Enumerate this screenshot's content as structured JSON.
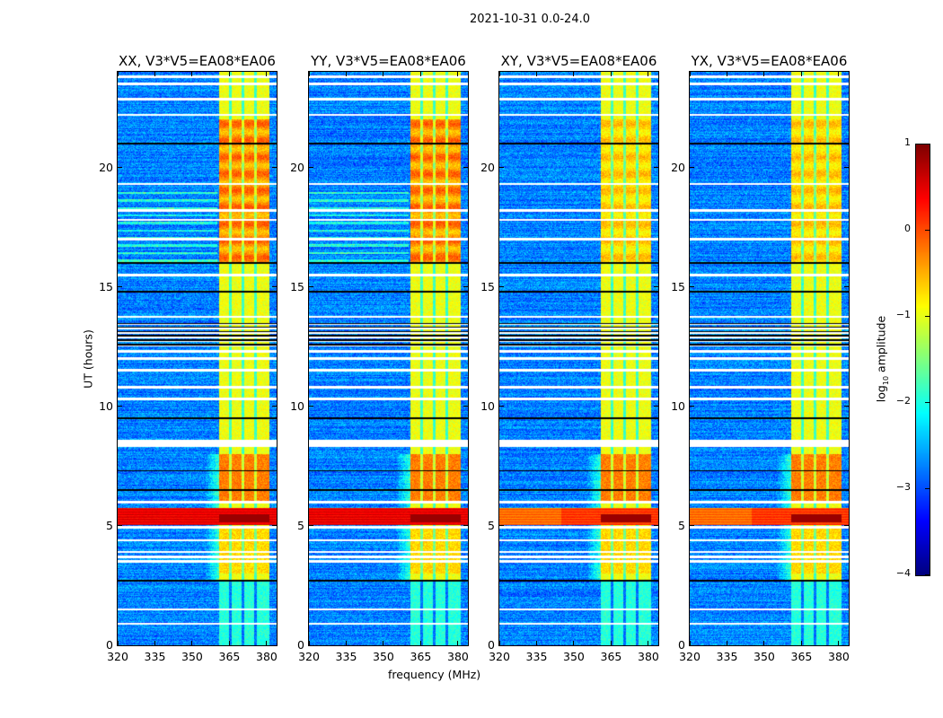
{
  "suptitle": "2021-10-31 0.0-24.0",
  "panels": [
    {
      "title": "XX, V3*V5=EA08*EA06",
      "pol": "XX"
    },
    {
      "title": "YY, V3*V5=EA08*EA06",
      "pol": "YY"
    },
    {
      "title": "XY, V3*V5=EA08*EA06",
      "pol": "XY"
    },
    {
      "title": "YX, V3*V5=EA08*EA06",
      "pol": "YX"
    }
  ],
  "xlabel": "frequency (MHz)",
  "ylabel": "UT (hours)",
  "colorbar": {
    "label_prefix": "log",
    "label_sub": "10",
    "label_suffix": " amplitude",
    "ticks": [
      "1",
      "0",
      "−1",
      "−2",
      "−3",
      "−4"
    ],
    "range": [
      -4,
      1
    ],
    "colormap": "jet"
  },
  "chart_data": {
    "type": "heatmap",
    "title": "2021-10-31 0.0-24.0",
    "xlabel": "frequency (MHz)",
    "ylabel": "UT (hours)",
    "xlim": [
      320,
      384
    ],
    "ylim": [
      0,
      24
    ],
    "xticks": [
      "320",
      "335",
      "350",
      "365",
      "380"
    ],
    "xtick_values": [
      320,
      335,
      350,
      365,
      380
    ],
    "yticks": [
      "0",
      "5",
      "10",
      "15",
      "20"
    ],
    "ytick_values": [
      0,
      5,
      10,
      15,
      20
    ],
    "value_label": "log10 amplitude",
    "value_range": [
      -4,
      1
    ],
    "background_level": -3.2,
    "rfi_band_mhz": [
      361,
      381
    ],
    "rfi_band_level": -1.2,
    "rfi_subband_gaps_mhz": [
      365.5,
      370.5,
      375.5
    ],
    "strong_event_hours": [
      5.05,
      5.75
    ],
    "strong_event_level": 0.4,
    "flagged_white_hours": [
      0.9,
      1.5,
      3.5,
      3.7,
      3.9,
      4.4,
      4.95,
      6.0,
      8.35,
      8.5,
      10.3,
      10.8,
      11.5,
      12.0,
      12.3,
      13.75,
      15.5,
      17.0,
      17.8,
      18.2,
      19.3,
      22.2,
      22.85,
      23.5,
      23.8
    ],
    "flagged_black_hours": [
      2.7,
      6.5,
      7.3,
      9.5,
      14.8,
      16.0,
      21.0
    ],
    "striped_interval_hours": [
      12.5,
      13.5
    ]
  }
}
